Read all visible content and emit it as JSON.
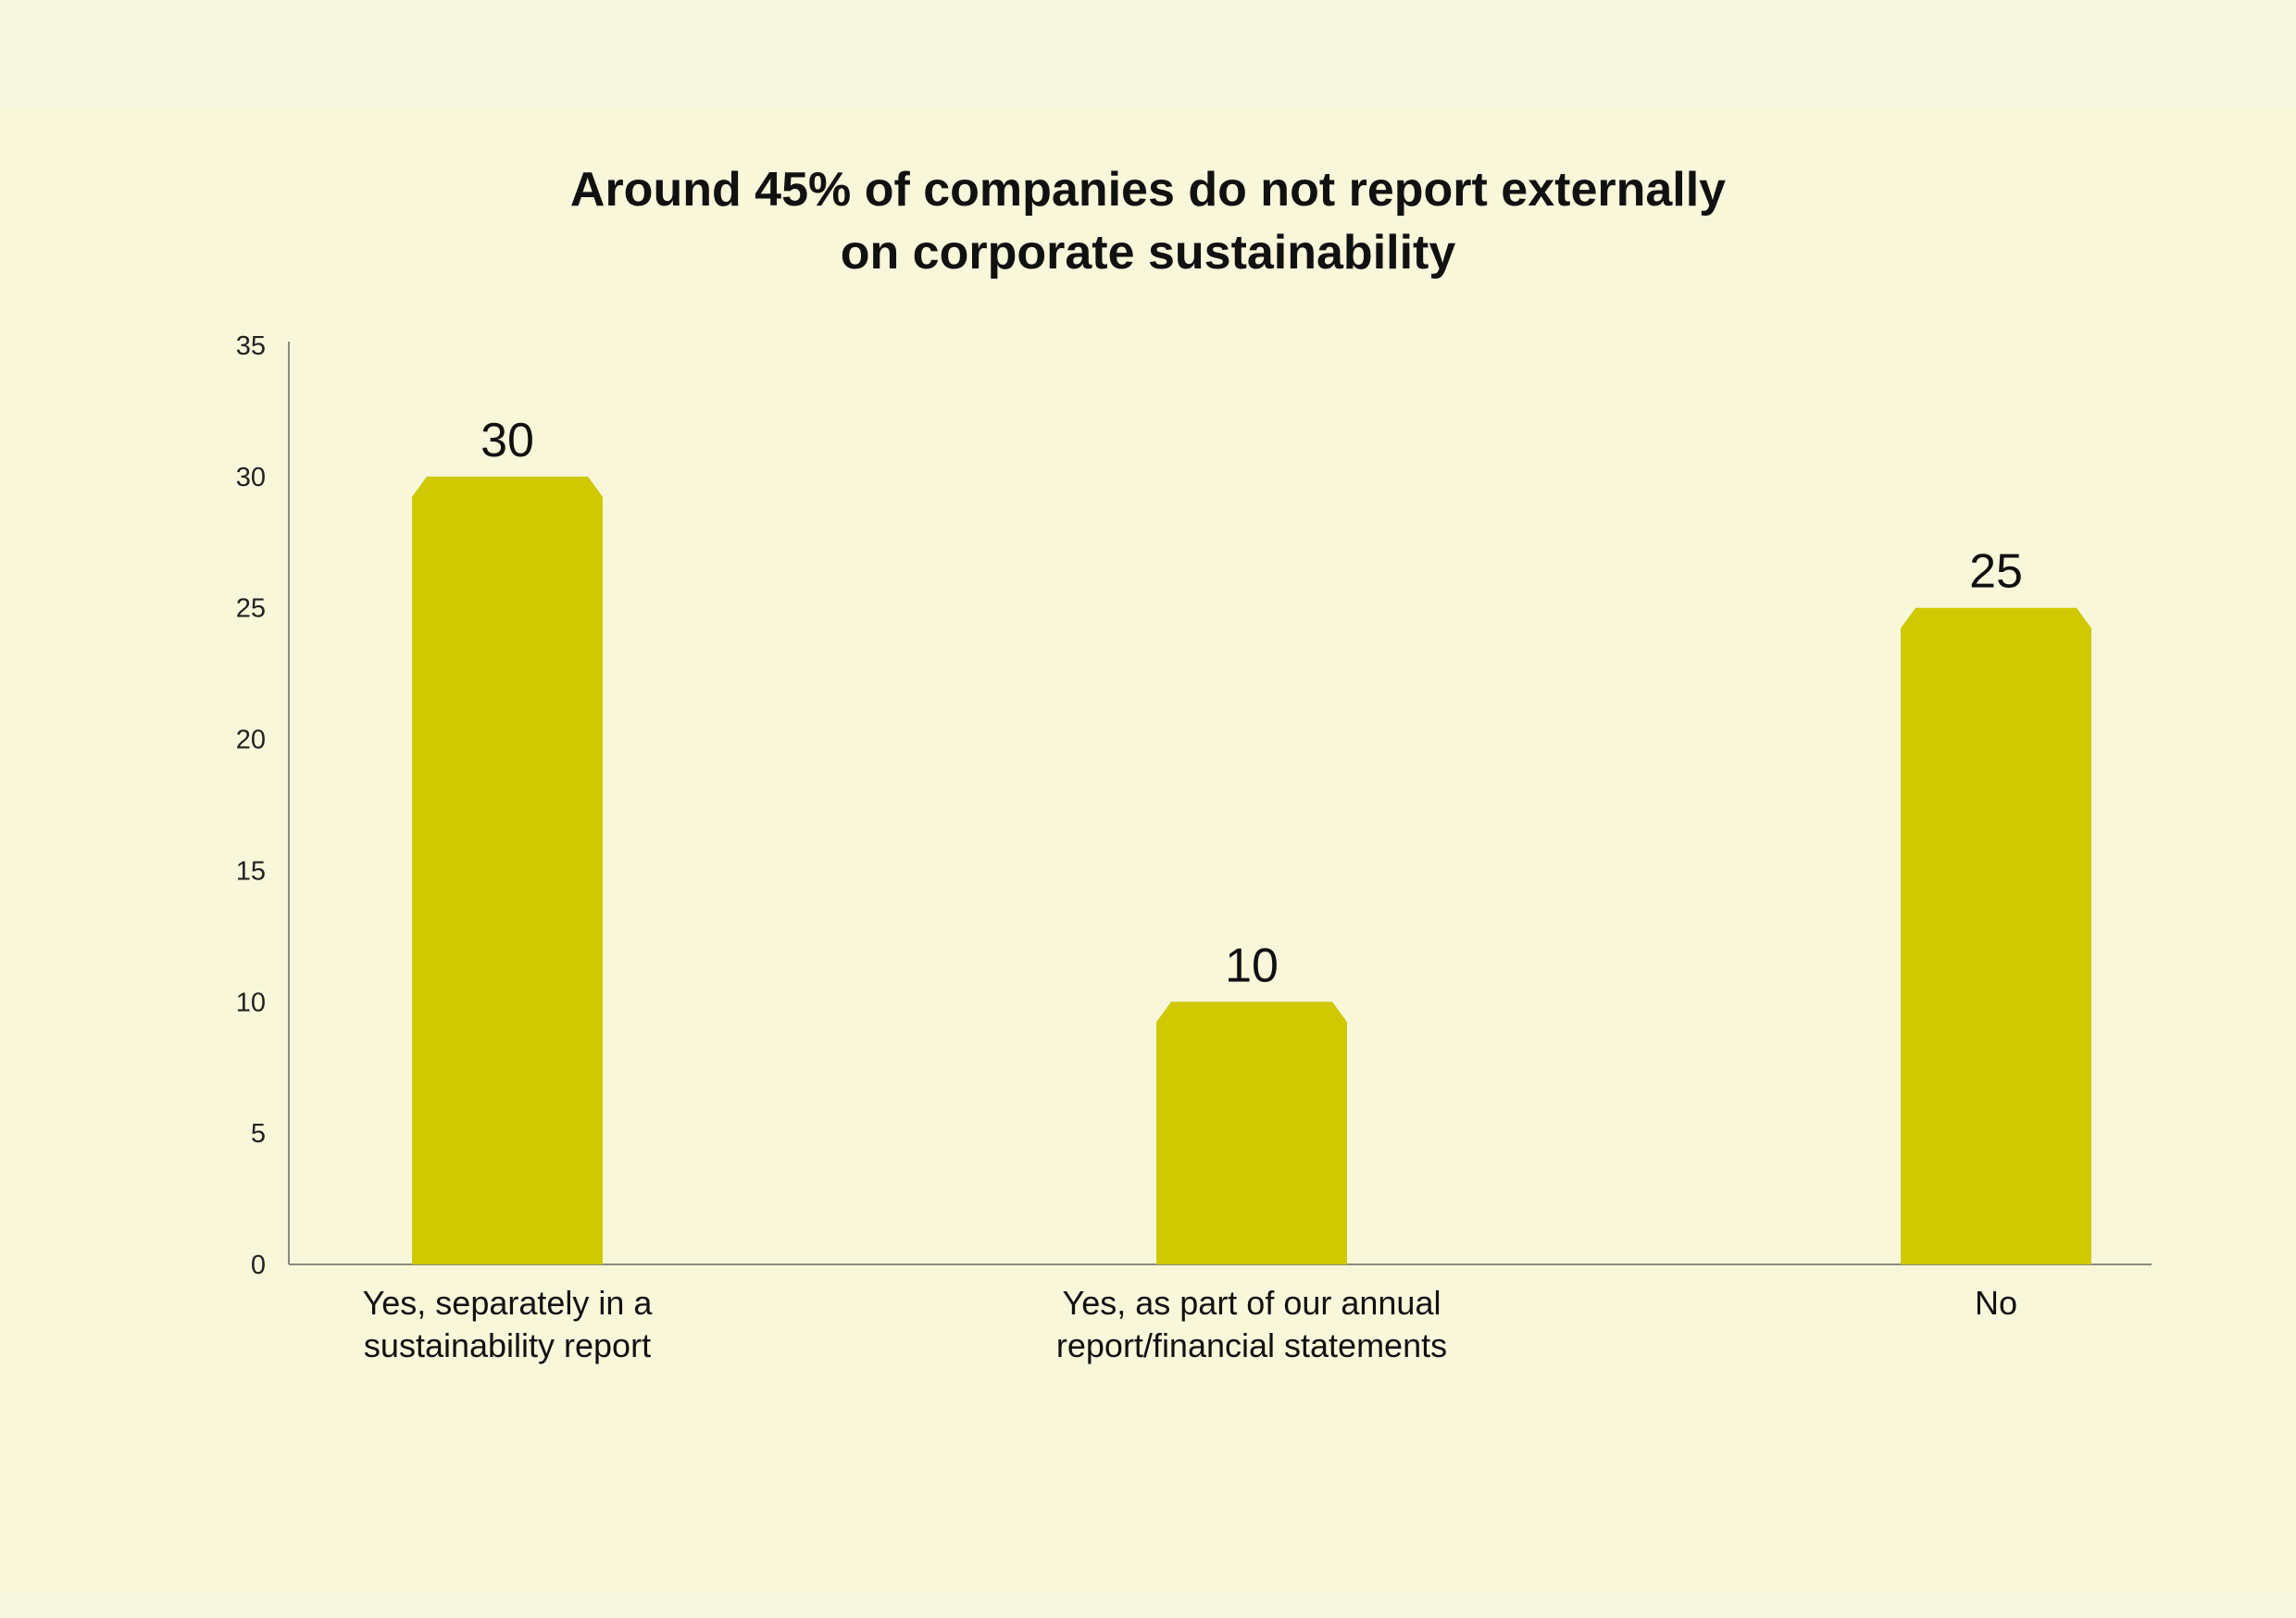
{
  "chart_data": {
    "type": "bar",
    "title": "Around 45% of companies do not report externally on corporate sustainability",
    "title_lines": [
      "Around 45% of companies do not report externally",
      "on corporate sustainability"
    ],
    "categories": [
      "Yes, separately in a sustainability report",
      "Yes, as part of our annual report/financial statements",
      "No"
    ],
    "category_lines": [
      [
        "Yes, separately in a",
        "sustainability report"
      ],
      [
        "Yes, as part of our annual",
        "report/financial statements"
      ],
      [
        "No"
      ]
    ],
    "values": [
      30,
      10,
      25
    ],
    "value_labels": [
      "30",
      "10",
      "25"
    ],
    "yticks": [
      "0",
      "5",
      "10",
      "15",
      "20",
      "25",
      "30",
      "35"
    ],
    "ylim": [
      0,
      35
    ],
    "xlabel": "",
    "ylabel": "",
    "grid": false,
    "legend": "none",
    "bar_color": "#d0c800",
    "background_color": "#f8f7da"
  }
}
